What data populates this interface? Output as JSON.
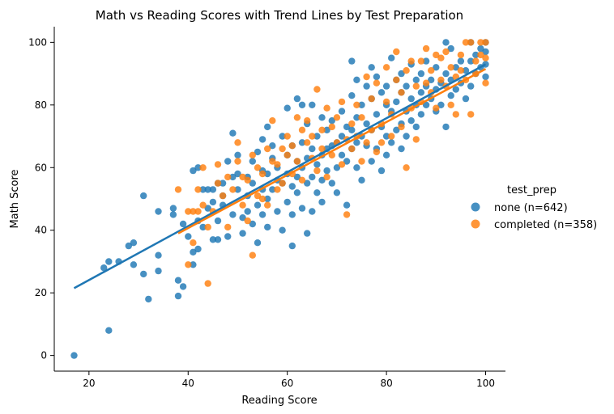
{
  "chart_data": {
    "type": "scatter",
    "title": "Math vs Reading Scores with Trend Lines by Test Preparation",
    "xlabel": "Reading Score",
    "ylabel": "Math Score",
    "xlim": [
      13,
      104
    ],
    "ylim": [
      -5,
      105
    ],
    "xticks": [
      20,
      40,
      60,
      80,
      100
    ],
    "yticks": [
      0,
      20,
      40,
      60,
      80,
      100
    ],
    "legend": {
      "title": "test_prep",
      "position": "right"
    },
    "grid": false,
    "series": [
      {
        "name": "none (n=642)",
        "color": "#1f77b4",
        "trend": {
          "x": [
            17,
            100
          ],
          "y": [
            21.5,
            93
          ]
        },
        "points": [
          [
            17,
            0
          ],
          [
            24,
            8
          ],
          [
            23,
            28
          ],
          [
            24,
            30
          ],
          [
            26,
            30
          ],
          [
            28,
            35
          ],
          [
            29,
            36
          ],
          [
            29,
            29
          ],
          [
            31,
            51
          ],
          [
            31,
            26
          ],
          [
            32,
            18
          ],
          [
            34,
            27
          ],
          [
            34,
            46
          ],
          [
            34,
            32
          ],
          [
            37,
            47
          ],
          [
            37,
            45
          ],
          [
            38,
            24
          ],
          [
            38,
            19
          ],
          [
            39,
            22
          ],
          [
            39,
            42
          ],
          [
            40,
            38
          ],
          [
            41,
            29
          ],
          [
            41,
            33
          ],
          [
            41,
            59
          ],
          [
            42,
            60
          ],
          [
            42,
            34
          ],
          [
            42,
            43
          ],
          [
            43,
            41
          ],
          [
            43,
            53
          ],
          [
            44,
            53
          ],
          [
            44,
            47
          ],
          [
            45,
            37
          ],
          [
            45,
            53
          ],
          [
            45,
            49
          ],
          [
            46,
            37
          ],
          [
            46,
            43
          ],
          [
            46,
            55
          ],
          [
            47,
            51
          ],
          [
            47,
            55
          ],
          [
            47,
            48
          ],
          [
            48,
            62
          ],
          [
            48,
            38
          ],
          [
            49,
            71
          ],
          [
            49,
            57
          ],
          [
            49,
            45
          ],
          [
            50,
            64
          ],
          [
            50,
            58
          ],
          [
            50,
            53
          ],
          [
            51,
            44
          ],
          [
            51,
            39
          ],
          [
            52,
            57
          ],
          [
            52,
            46
          ],
          [
            52,
            51
          ],
          [
            53,
            42
          ],
          [
            53,
            62
          ],
          [
            53,
            55
          ],
          [
            54,
            36
          ],
          [
            54,
            48
          ],
          [
            54,
            65
          ],
          [
            55,
            69
          ],
          [
            55,
            53
          ],
          [
            55,
            45
          ],
          [
            55,
            59
          ],
          [
            56,
            73
          ],
          [
            56,
            58
          ],
          [
            56,
            41
          ],
          [
            56,
            50
          ],
          [
            57,
            67
          ],
          [
            57,
            53
          ],
          [
            57,
            63
          ],
          [
            58,
            56
          ],
          [
            58,
            46
          ],
          [
            58,
            60
          ],
          [
            59,
            40
          ],
          [
            59,
            70
          ],
          [
            59,
            55
          ],
          [
            60,
            79
          ],
          [
            60,
            64
          ],
          [
            60,
            49
          ],
          [
            60,
            58
          ],
          [
            61,
            45
          ],
          [
            61,
            35
          ],
          [
            61,
            67
          ],
          [
            61,
            54
          ],
          [
            62,
            82
          ],
          [
            62,
            62
          ],
          [
            62,
            52
          ],
          [
            62,
            57
          ],
          [
            63,
            80
          ],
          [
            63,
            68
          ],
          [
            63,
            47
          ],
          [
            63,
            60
          ],
          [
            64,
            39
          ],
          [
            64,
            74
          ],
          [
            64,
            63
          ],
          [
            64,
            55
          ],
          [
            65,
            80
          ],
          [
            65,
            66
          ],
          [
            65,
            57
          ],
          [
            65,
            46
          ],
          [
            66,
            70
          ],
          [
            66,
            61
          ],
          [
            66,
            52
          ],
          [
            67,
            76
          ],
          [
            67,
            64
          ],
          [
            67,
            56
          ],
          [
            67,
            49
          ],
          [
            68,
            72
          ],
          [
            68,
            66
          ],
          [
            68,
            59
          ],
          [
            69,
            55
          ],
          [
            69,
            75
          ],
          [
            69,
            67
          ],
          [
            70,
            68
          ],
          [
            70,
            60
          ],
          [
            70,
            52
          ],
          [
            71,
            78
          ],
          [
            71,
            70
          ],
          [
            71,
            64
          ],
          [
            72,
            62
          ],
          [
            72,
            48
          ],
          [
            72,
            73
          ],
          [
            73,
            94
          ],
          [
            73,
            83
          ],
          [
            73,
            72
          ],
          [
            73,
            66
          ],
          [
            74,
            88
          ],
          [
            74,
            76
          ],
          [
            74,
            68
          ],
          [
            74,
            60
          ],
          [
            75,
            80
          ],
          [
            75,
            70
          ],
          [
            75,
            56
          ],
          [
            76,
            86
          ],
          [
            76,
            74
          ],
          [
            76,
            67
          ],
          [
            77,
            92
          ],
          [
            77,
            82
          ],
          [
            77,
            72
          ],
          [
            77,
            62
          ],
          [
            78,
            89
          ],
          [
            78,
            77
          ],
          [
            78,
            66
          ],
          [
            79,
            84
          ],
          [
            79,
            73
          ],
          [
            79,
            59
          ],
          [
            80,
            86
          ],
          [
            80,
            80
          ],
          [
            80,
            70
          ],
          [
            80,
            64
          ],
          [
            81,
            95
          ],
          [
            81,
            78
          ],
          [
            81,
            68
          ],
          [
            82,
            88
          ],
          [
            82,
            81
          ],
          [
            82,
            72
          ],
          [
            83,
            90
          ],
          [
            83,
            84
          ],
          [
            83,
            74
          ],
          [
            83,
            66
          ],
          [
            84,
            86
          ],
          [
            84,
            78
          ],
          [
            84,
            70
          ],
          [
            85,
            93
          ],
          [
            85,
            82
          ],
          [
            85,
            75
          ],
          [
            86,
            88
          ],
          [
            86,
            80
          ],
          [
            86,
            73
          ],
          [
            87,
            90
          ],
          [
            87,
            84
          ],
          [
            87,
            77
          ],
          [
            88,
            94
          ],
          [
            88,
            86
          ],
          [
            88,
            80
          ],
          [
            89,
            88
          ],
          [
            89,
            82
          ],
          [
            90,
            92
          ],
          [
            90,
            85
          ],
          [
            90,
            78
          ],
          [
            91,
            87
          ],
          [
            91,
            80
          ],
          [
            92,
            100
          ],
          [
            92,
            90
          ],
          [
            92,
            73
          ],
          [
            93,
            98
          ],
          [
            93,
            88
          ],
          [
            93,
            83
          ],
          [
            94,
            92
          ],
          [
            94,
            85
          ],
          [
            95,
            94
          ],
          [
            95,
            87
          ],
          [
            96,
            91
          ],
          [
            96,
            82
          ],
          [
            97,
            100
          ],
          [
            97,
            94
          ],
          [
            97,
            86
          ],
          [
            98,
            96
          ],
          [
            98,
            90
          ],
          [
            99,
            98
          ],
          [
            99,
            92
          ],
          [
            100,
            100
          ],
          [
            100,
            97
          ],
          [
            100,
            93
          ],
          [
            100,
            89
          ]
        ]
      },
      {
        "name": "completed (n=358)",
        "color": "#ff7f0e",
        "trend": {
          "x": [
            38,
            100
          ],
          "y": [
            39,
            91.5
          ]
        },
        "points": [
          [
            38,
            53
          ],
          [
            40,
            46
          ],
          [
            40,
            29
          ],
          [
            41,
            36
          ],
          [
            41,
            46
          ],
          [
            42,
            46
          ],
          [
            42,
            53
          ],
          [
            43,
            48
          ],
          [
            43,
            60
          ],
          [
            44,
            23
          ],
          [
            44,
            41
          ],
          [
            45,
            46
          ],
          [
            46,
            61
          ],
          [
            46,
            55
          ],
          [
            47,
            51
          ],
          [
            48,
            41
          ],
          [
            48,
            57
          ],
          [
            49,
            53
          ],
          [
            50,
            62
          ],
          [
            50,
            68
          ],
          [
            51,
            48
          ],
          [
            51,
            57
          ],
          [
            52,
            43
          ],
          [
            52,
            56
          ],
          [
            53,
            32
          ],
          [
            53,
            64
          ],
          [
            54,
            51
          ],
          [
            54,
            60
          ],
          [
            55,
            50
          ],
          [
            55,
            58
          ],
          [
            56,
            66
          ],
          [
            56,
            48
          ],
          [
            57,
            62
          ],
          [
            57,
            75
          ],
          [
            58,
            53
          ],
          [
            58,
            61
          ],
          [
            59,
            66
          ],
          [
            59,
            55
          ],
          [
            60,
            70
          ],
          [
            60,
            64
          ],
          [
            61,
            58
          ],
          [
            61,
            67
          ],
          [
            62,
            76
          ],
          [
            62,
            62
          ],
          [
            63,
            56
          ],
          [
            63,
            72
          ],
          [
            64,
            68
          ],
          [
            64,
            75
          ],
          [
            65,
            63
          ],
          [
            65,
            70
          ],
          [
            66,
            85
          ],
          [
            66,
            59
          ],
          [
            67,
            72
          ],
          [
            67,
            66
          ],
          [
            68,
            57
          ],
          [
            68,
            79
          ],
          [
            69,
            73
          ],
          [
            69,
            64
          ],
          [
            70,
            68
          ],
          [
            70,
            76
          ],
          [
            71,
            61
          ],
          [
            71,
            81
          ],
          [
            72,
            45
          ],
          [
            72,
            69
          ],
          [
            73,
            74
          ],
          [
            73,
            66
          ],
          [
            74,
            80
          ],
          [
            74,
            70
          ],
          [
            75,
            62
          ],
          [
            75,
            76
          ],
          [
            76,
            89
          ],
          [
            76,
            68
          ],
          [
            77,
            72
          ],
          [
            77,
            82
          ],
          [
            78,
            65
          ],
          [
            78,
            87
          ],
          [
            79,
            74
          ],
          [
            79,
            68
          ],
          [
            80,
            81
          ],
          [
            80,
            92
          ],
          [
            81,
            70
          ],
          [
            81,
            77
          ],
          [
            82,
            88
          ],
          [
            82,
            97
          ],
          [
            83,
            73
          ],
          [
            83,
            84
          ],
          [
            84,
            60
          ],
          [
            84,
            91
          ],
          [
            85,
            79
          ],
          [
            85,
            94
          ],
          [
            86,
            86
          ],
          [
            86,
            69
          ],
          [
            87,
            94
          ],
          [
            87,
            81
          ],
          [
            88,
            87
          ],
          [
            88,
            98
          ],
          [
            89,
            84
          ],
          [
            89,
            91
          ],
          [
            90,
            96
          ],
          [
            90,
            79
          ],
          [
            91,
            88
          ],
          [
            91,
            95
          ],
          [
            92,
            86
          ],
          [
            92,
            97
          ],
          [
            93,
            92
          ],
          [
            93,
            80
          ],
          [
            94,
            89
          ],
          [
            94,
            77
          ],
          [
            95,
            96
          ],
          [
            95,
            91
          ],
          [
            96,
            100
          ],
          [
            96,
            88
          ],
          [
            97,
            100
          ],
          [
            97,
            77
          ],
          [
            98,
            94
          ],
          [
            98,
            90
          ],
          [
            99,
            100
          ],
          [
            99,
            96
          ],
          [
            100,
            100
          ],
          [
            100,
            95
          ],
          [
            100,
            87
          ]
        ]
      }
    ]
  }
}
